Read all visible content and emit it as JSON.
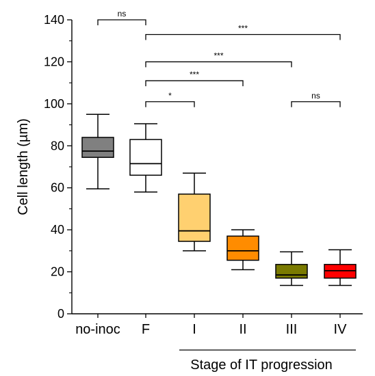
{
  "chart_data": {
    "type": "box",
    "ylabel": "Cell length (µm)",
    "group_label": "Stage of IT progression",
    "ylim": [
      0,
      140
    ],
    "y_ticks": [
      0,
      20,
      40,
      60,
      80,
      100,
      120,
      140
    ],
    "categories": [
      "no-inoc",
      "F",
      "I",
      "II",
      "III",
      "IV"
    ],
    "boxes": [
      {
        "category": "no-inoc",
        "whisker_low": 59.5,
        "q1": 74.5,
        "median": 77.5,
        "q3": 84.0,
        "whisker_high": 95.0,
        "color": "#808080"
      },
      {
        "category": "F",
        "whisker_low": 58.0,
        "q1": 66.0,
        "median": 71.5,
        "q3": 83.0,
        "whisker_high": 90.5,
        "color": "#ffffff"
      },
      {
        "category": "I",
        "whisker_low": 30.0,
        "q1": 34.5,
        "median": 39.5,
        "q3": 57.0,
        "whisker_high": 67.0,
        "color": "#ffd070"
      },
      {
        "category": "II",
        "whisker_low": 21.0,
        "q1": 25.5,
        "median": 30.0,
        "q3": 37.0,
        "whisker_high": 40.0,
        "color": "#ff8c00"
      },
      {
        "category": "III",
        "whisker_low": 13.5,
        "q1": 17.0,
        "median": 18.5,
        "q3": 23.5,
        "whisker_high": 29.5,
        "color": "#7a7a00"
      },
      {
        "category": "IV",
        "whisker_low": 13.5,
        "q1": 17.0,
        "median": 20.5,
        "q3": 23.5,
        "whisker_high": 30.5,
        "color": "#ff0000"
      }
    ],
    "significance": [
      {
        "from": "no-inoc",
        "to": "F",
        "y": 140,
        "label": "ns"
      },
      {
        "from": "F",
        "to": "IV",
        "y": 133,
        "label": "***"
      },
      {
        "from": "F",
        "to": "III",
        "y": 120,
        "label": "***"
      },
      {
        "from": "F",
        "to": "II",
        "y": 111,
        "label": "***"
      },
      {
        "from": "F",
        "to": "I",
        "y": 101,
        "label": "*"
      },
      {
        "from": "III",
        "to": "IV",
        "y": 101,
        "label": "ns"
      }
    ]
  }
}
